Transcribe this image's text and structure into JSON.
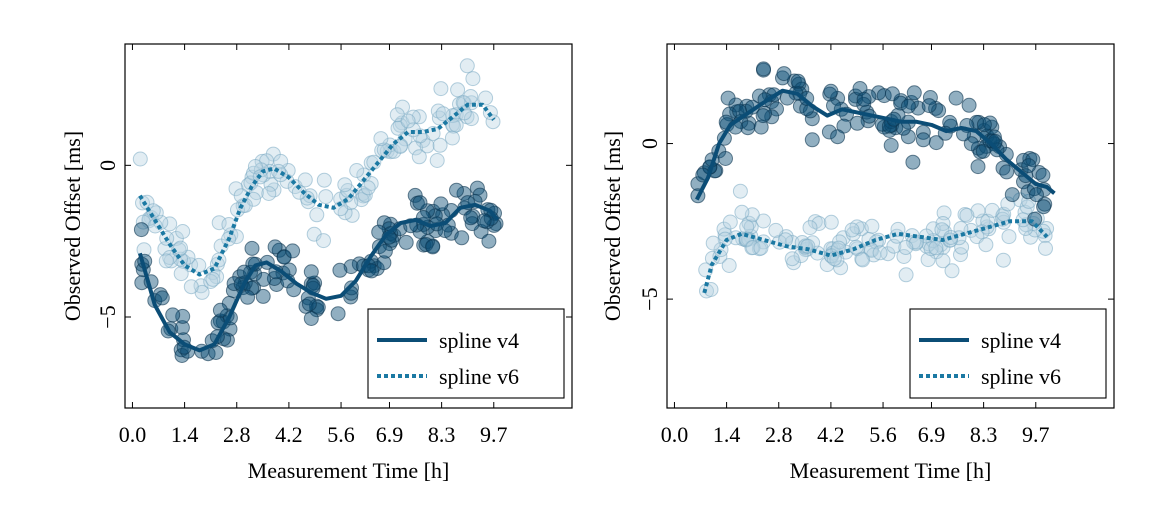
{
  "colors": {
    "v4": "#0b4d76",
    "v6": "#1b79a3",
    "v6_point_fill": "#b7d3e2"
  },
  "chart_data": [
    {
      "type": "scatter",
      "title": "",
      "xlabel": "Measurement Time [h]",
      "ylabel": "Observed Offset [ms]",
      "xlim": [
        -0.2,
        11.8
      ],
      "ylim": [
        -8,
        4
      ],
      "xticks": [
        0.0,
        1.4,
        2.8,
        4.2,
        5.6,
        6.9,
        8.3,
        9.7
      ],
      "xtick_labels": [
        "0.0",
        "1.4",
        "2.8",
        "4.2",
        "5.6",
        "6.9",
        "8.3",
        "9.7"
      ],
      "yticks": [
        0,
        -5
      ],
      "ytick_labels": [
        "0",
        "−5"
      ],
      "legend": {
        "position": "bottom-right",
        "entries": [
          "spline v4",
          "spline v6"
        ]
      },
      "series": [
        {
          "name": "spline v4",
          "style": "solid",
          "curve": [
            [
              0.2,
              -2.9
            ],
            [
              0.6,
              -4.6
            ],
            [
              1.0,
              -5.5
            ],
            [
              1.4,
              -5.9
            ],
            [
              1.8,
              -6.1
            ],
            [
              2.2,
              -5.9
            ],
            [
              2.6,
              -5.0
            ],
            [
              3.0,
              -3.9
            ],
            [
              3.3,
              -3.3
            ],
            [
              3.6,
              -3.2
            ],
            [
              4.0,
              -3.5
            ],
            [
              4.4,
              -3.9
            ],
            [
              4.8,
              -4.2
            ],
            [
              5.2,
              -4.4
            ],
            [
              5.6,
              -4.3
            ],
            [
              6.0,
              -3.8
            ],
            [
              6.4,
              -3.0
            ],
            [
              6.8,
              -2.3
            ],
            [
              7.2,
              -1.9
            ],
            [
              7.6,
              -1.8
            ],
            [
              8.0,
              -2.0
            ],
            [
              8.4,
              -1.9
            ],
            [
              8.8,
              -1.4
            ],
            [
              9.2,
              -1.3
            ],
            [
              9.6,
              -1.5
            ],
            [
              9.8,
              -1.8
            ]
          ],
          "points": []
        },
        {
          "name": "spline v6",
          "style": "dotted",
          "curve": [
            [
              0.2,
              -1.0
            ],
            [
              0.6,
              -1.8
            ],
            [
              1.0,
              -2.6
            ],
            [
              1.4,
              -3.3
            ],
            [
              1.8,
              -3.6
            ],
            [
              2.2,
              -3.4
            ],
            [
              2.6,
              -2.4
            ],
            [
              2.9,
              -1.4
            ],
            [
              3.2,
              -0.7
            ],
            [
              3.5,
              -0.2
            ],
            [
              3.8,
              -0.1
            ],
            [
              4.2,
              -0.4
            ],
            [
              4.6,
              -0.9
            ],
            [
              5.0,
              -1.3
            ],
            [
              5.4,
              -1.4
            ],
            [
              5.8,
              -1.1
            ],
            [
              6.2,
              -0.5
            ],
            [
              6.6,
              0.1
            ],
            [
              7.0,
              0.7
            ],
            [
              7.4,
              1.1
            ],
            [
              7.8,
              1.1
            ],
            [
              8.2,
              1.2
            ],
            [
              8.6,
              1.6
            ],
            [
              9.0,
              2.0
            ],
            [
              9.4,
              2.0
            ],
            [
              9.7,
              1.5
            ]
          ],
          "points": []
        }
      ]
    },
    {
      "type": "scatter",
      "title": "",
      "xlabel": "Measurement Time [h]",
      "ylabel": "Observed Offset [ms]",
      "xlim": [
        -0.2,
        11.8
      ],
      "ylim": [
        -8.5,
        3.2
      ],
      "xticks": [
        0.0,
        1.4,
        2.8,
        4.2,
        5.6,
        6.9,
        8.3,
        9.7
      ],
      "xtick_labels": [
        "0.0",
        "1.4",
        "2.8",
        "4.2",
        "5.6",
        "6.9",
        "8.3",
        "9.7"
      ],
      "yticks": [
        0,
        -5
      ],
      "ytick_labels": [
        "0",
        "−5"
      ],
      "legend": {
        "position": "bottom-right",
        "entries": [
          "spline v4",
          "spline v6"
        ]
      },
      "series": [
        {
          "name": "spline v4",
          "style": "solid",
          "curve": [
            [
              0.6,
              -1.8
            ],
            [
              0.9,
              -1.1
            ],
            [
              1.2,
              0.0
            ],
            [
              1.5,
              0.6
            ],
            [
              2.0,
              1.0
            ],
            [
              2.5,
              1.4
            ],
            [
              2.9,
              1.7
            ],
            [
              3.3,
              1.6
            ],
            [
              3.7,
              1.2
            ],
            [
              4.1,
              0.9
            ],
            [
              4.5,
              1.1
            ],
            [
              4.9,
              1.0
            ],
            [
              5.3,
              0.9
            ],
            [
              5.7,
              0.8
            ],
            [
              6.1,
              0.7
            ],
            [
              6.5,
              0.7
            ],
            [
              6.9,
              0.6
            ],
            [
              7.3,
              0.4
            ],
            [
              7.7,
              0.5
            ],
            [
              8.1,
              0.4
            ],
            [
              8.5,
              0.0
            ],
            [
              8.9,
              -0.5
            ],
            [
              9.3,
              -0.9
            ],
            [
              9.7,
              -1.3
            ],
            [
              10.0,
              -1.4
            ],
            [
              10.2,
              -1.6
            ]
          ],
          "points": []
        },
        {
          "name": "spline v6",
          "style": "dotted",
          "curve": [
            [
              0.8,
              -4.8
            ],
            [
              1.0,
              -3.9
            ],
            [
              1.4,
              -3.1
            ],
            [
              1.8,
              -2.9
            ],
            [
              2.4,
              -3.1
            ],
            [
              3.0,
              -3.3
            ],
            [
              3.6,
              -3.4
            ],
            [
              4.2,
              -3.6
            ],
            [
              4.8,
              -3.4
            ],
            [
              5.4,
              -3.1
            ],
            [
              6.0,
              -2.9
            ],
            [
              6.6,
              -3.0
            ],
            [
              7.2,
              -3.1
            ],
            [
              7.8,
              -2.9
            ],
            [
              8.4,
              -2.7
            ],
            [
              9.0,
              -2.5
            ],
            [
              9.6,
              -2.5
            ],
            [
              10.0,
              -3.0
            ]
          ],
          "points": []
        }
      ]
    }
  ]
}
